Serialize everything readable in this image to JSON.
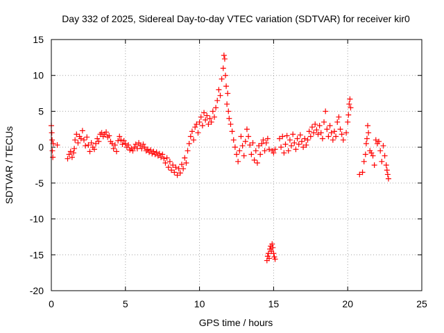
{
  "chart_data": {
    "type": "scatter",
    "title": "Day 332 of 2025, Sidereal Day-to-day VTEC variation (SDTVAR) for receiver kir0",
    "xlabel": "GPS time / hours",
    "ylabel": "SDTVAR / TECUs",
    "xlim": [
      0,
      25
    ],
    "ylim": [
      -20,
      15
    ],
    "xticks": [
      0,
      5,
      10,
      15,
      20,
      25
    ],
    "yticks": [
      15,
      10,
      5,
      0,
      -5,
      -10,
      -15,
      -20
    ],
    "grid": true,
    "marker": "+",
    "color": "#ff0000",
    "series": [
      {
        "name": "SDTVAR",
        "points": [
          [
            0.0,
            3.0
          ],
          [
            0.03,
            2.0
          ],
          [
            0.05,
            1.0
          ],
          [
            0.07,
            -0.5
          ],
          [
            0.1,
            -1.4
          ],
          [
            0.13,
            0.5
          ],
          [
            0.4,
            0.3
          ],
          [
            1.1,
            -1.6
          ],
          [
            1.2,
            -1.0
          ],
          [
            1.3,
            -0.6
          ],
          [
            1.4,
            -1.4
          ],
          [
            1.5,
            -0.8
          ],
          [
            1.55,
            -0.2
          ],
          [
            1.6,
            1.0
          ],
          [
            1.7,
            1.8
          ],
          [
            1.8,
            0.6
          ],
          [
            1.9,
            1.5
          ],
          [
            2.0,
            1.2
          ],
          [
            2.1,
            2.3
          ],
          [
            2.2,
            1.0
          ],
          [
            2.3,
            0.2
          ],
          [
            2.4,
            1.4
          ],
          [
            2.5,
            0.3
          ],
          [
            2.6,
            -0.6
          ],
          [
            2.7,
            0.6
          ],
          [
            2.8,
            0.0
          ],
          [
            2.9,
            -0.3
          ],
          [
            3.0,
            0.5
          ],
          [
            3.1,
            1.2
          ],
          [
            3.2,
            0.8
          ],
          [
            3.3,
            1.8
          ],
          [
            3.4,
            2.0
          ],
          [
            3.5,
            1.5
          ],
          [
            3.6,
            1.8
          ],
          [
            3.7,
            2.1
          ],
          [
            3.8,
            1.4
          ],
          [
            3.9,
            1.6
          ],
          [
            4.0,
            0.8
          ],
          [
            4.1,
            0.5
          ],
          [
            4.2,
            -0.2
          ],
          [
            4.3,
            0.3
          ],
          [
            4.4,
            -0.6
          ],
          [
            4.5,
            0.9
          ],
          [
            4.6,
            1.5
          ],
          [
            4.7,
            1.0
          ],
          [
            4.8,
            0.4
          ],
          [
            4.9,
            0.9
          ],
          [
            5.0,
            0.5
          ],
          [
            5.1,
            0.0
          ],
          [
            5.2,
            0.3
          ],
          [
            5.3,
            -0.4
          ],
          [
            5.4,
            -0.2
          ],
          [
            5.5,
            -0.5
          ],
          [
            5.6,
            0.0
          ],
          [
            5.7,
            0.4
          ],
          [
            5.8,
            -0.2
          ],
          [
            5.9,
            0.6
          ],
          [
            6.0,
            0.2
          ],
          [
            6.1,
            -0.2
          ],
          [
            6.2,
            0.4
          ],
          [
            6.3,
            0.0
          ],
          [
            6.4,
            -0.5
          ],
          [
            6.5,
            -0.3
          ],
          [
            6.6,
            -0.7
          ],
          [
            6.7,
            -0.4
          ],
          [
            6.8,
            -0.9
          ],
          [
            6.9,
            -0.6
          ],
          [
            7.0,
            -1.0
          ],
          [
            7.1,
            -0.7
          ],
          [
            7.2,
            -1.2
          ],
          [
            7.3,
            -0.9
          ],
          [
            7.4,
            -1.4
          ],
          [
            7.5,
            -1.0
          ],
          [
            7.6,
            -1.6
          ],
          [
            7.7,
            -2.2
          ],
          [
            7.8,
            -1.5
          ],
          [
            7.9,
            -2.8
          ],
          [
            8.0,
            -2.0
          ],
          [
            8.1,
            -3.2
          ],
          [
            8.2,
            -2.5
          ],
          [
            8.3,
            -3.5
          ],
          [
            8.4,
            -2.8
          ],
          [
            8.5,
            -3.9
          ],
          [
            8.6,
            -3.0
          ],
          [
            8.7,
            -3.6
          ],
          [
            8.8,
            -2.4
          ],
          [
            8.9,
            -3.0
          ],
          [
            9.0,
            -1.5
          ],
          [
            9.1,
            -2.2
          ],
          [
            9.2,
            -0.5
          ],
          [
            9.3,
            0.5
          ],
          [
            9.4,
            1.5
          ],
          [
            9.5,
            2.2
          ],
          [
            9.6,
            1.0
          ],
          [
            9.7,
            2.8
          ],
          [
            9.8,
            3.2
          ],
          [
            9.9,
            2.0
          ],
          [
            10.0,
            3.5
          ],
          [
            10.1,
            4.2
          ],
          [
            10.2,
            3.0
          ],
          [
            10.3,
            4.8
          ],
          [
            10.4,
            3.8
          ],
          [
            10.5,
            4.4
          ],
          [
            10.6,
            3.2
          ],
          [
            10.7,
            4.0
          ],
          [
            10.8,
            3.5
          ],
          [
            10.9,
            5.0
          ],
          [
            11.0,
            4.2
          ],
          [
            11.1,
            5.5
          ],
          [
            11.2,
            6.5
          ],
          [
            11.3,
            8.0
          ],
          [
            11.4,
            7.2
          ],
          [
            11.5,
            9.5
          ],
          [
            11.6,
            11.0
          ],
          [
            11.65,
            12.8
          ],
          [
            11.7,
            12.3
          ],
          [
            11.75,
            10.0
          ],
          [
            11.8,
            8.5
          ],
          [
            11.85,
            6.0
          ],
          [
            11.9,
            7.5
          ],
          [
            11.95,
            5.0
          ],
          [
            12.0,
            4.0
          ],
          [
            12.1,
            3.2
          ],
          [
            12.2,
            2.2
          ],
          [
            12.3,
            1.0
          ],
          [
            12.4,
            0.0
          ],
          [
            12.5,
            -1.0
          ],
          [
            12.6,
            -2.0
          ],
          [
            12.7,
            -0.5
          ],
          [
            12.8,
            1.5
          ],
          [
            12.9,
            0.2
          ],
          [
            13.0,
            -1.2
          ],
          [
            13.1,
            0.8
          ],
          [
            13.2,
            2.5
          ],
          [
            13.3,
            1.5
          ],
          [
            13.4,
            0.3
          ],
          [
            13.5,
            -1.0
          ],
          [
            13.6,
            0.6
          ],
          [
            13.7,
            -1.8
          ],
          [
            13.8,
            -0.5
          ],
          [
            13.9,
            -2.2
          ],
          [
            14.0,
            0.2
          ],
          [
            14.1,
            -1.0
          ],
          [
            14.2,
            0.5
          ],
          [
            14.3,
            1.0
          ],
          [
            14.4,
            -0.5
          ],
          [
            14.5,
            0.6
          ],
          [
            14.6,
            1.2
          ],
          [
            14.7,
            -0.3
          ],
          [
            14.55,
            -15.8
          ],
          [
            14.6,
            -15.2
          ],
          [
            14.65,
            -14.8
          ],
          [
            14.7,
            -15.5
          ],
          [
            14.75,
            -14.2
          ],
          [
            14.8,
            -13.8
          ],
          [
            14.85,
            -14.5
          ],
          [
            14.9,
            -13.5
          ],
          [
            14.95,
            -14.0
          ],
          [
            15.0,
            -14.8
          ],
          [
            15.05,
            -15.3
          ],
          [
            15.1,
            -15.6
          ],
          [
            14.9,
            -0.5
          ],
          [
            15.0,
            -0.8
          ],
          [
            15.1,
            -0.3
          ],
          [
            15.4,
            1.2
          ],
          [
            15.5,
            0.0
          ],
          [
            15.6,
            1.5
          ],
          [
            15.7,
            -0.8
          ],
          [
            15.8,
            0.4
          ],
          [
            15.9,
            1.6
          ],
          [
            16.0,
            -0.5
          ],
          [
            16.1,
            1.0
          ],
          [
            16.2,
            0.2
          ],
          [
            16.3,
            1.8
          ],
          [
            16.4,
            0.6
          ],
          [
            16.5,
            -0.3
          ],
          [
            16.6,
            1.2
          ],
          [
            16.7,
            0.4
          ],
          [
            16.8,
            1.7
          ],
          [
            16.9,
            0.8
          ],
          [
            17.0,
            0.0
          ],
          [
            17.1,
            1.2
          ],
          [
            17.2,
            0.3
          ],
          [
            17.3,
            1.0
          ],
          [
            17.4,
            2.2
          ],
          [
            17.5,
            1.5
          ],
          [
            17.6,
            2.8
          ],
          [
            17.7,
            2.0
          ],
          [
            17.8,
            3.2
          ],
          [
            17.9,
            2.4
          ],
          [
            18.0,
            1.8
          ],
          [
            18.1,
            3.0
          ],
          [
            18.2,
            2.0
          ],
          [
            18.3,
            1.2
          ],
          [
            18.4,
            3.5
          ],
          [
            18.5,
            5.0
          ],
          [
            18.6,
            2.5
          ],
          [
            18.7,
            1.5
          ],
          [
            18.8,
            3.0
          ],
          [
            18.9,
            2.0
          ],
          [
            19.0,
            1.0
          ],
          [
            19.1,
            2.2
          ],
          [
            19.2,
            1.5
          ],
          [
            19.3,
            3.5
          ],
          [
            19.4,
            4.2
          ],
          [
            19.5,
            2.5
          ],
          [
            19.6,
            1.8
          ],
          [
            19.7,
            1.0
          ],
          [
            19.9,
            2.0
          ],
          [
            20.0,
            3.5
          ],
          [
            20.05,
            4.5
          ],
          [
            20.1,
            6.0
          ],
          [
            20.15,
            6.7
          ],
          [
            20.2,
            5.5
          ],
          [
            20.8,
            -3.8
          ],
          [
            21.0,
            -3.5
          ],
          [
            21.1,
            -2.0
          ],
          [
            21.2,
            -1.0
          ],
          [
            21.25,
            0.5
          ],
          [
            21.3,
            1.2
          ],
          [
            21.35,
            3.0
          ],
          [
            21.4,
            2.0
          ],
          [
            21.5,
            -0.5
          ],
          [
            21.6,
            -0.8
          ],
          [
            21.7,
            -1.2
          ],
          [
            21.8,
            -2.5
          ],
          [
            21.9,
            1.0
          ],
          [
            22.0,
            0.5
          ],
          [
            22.1,
            0.8
          ],
          [
            22.2,
            -0.5
          ],
          [
            22.3,
            -2.0
          ],
          [
            22.4,
            0.2
          ],
          [
            22.5,
            -1.2
          ],
          [
            22.6,
            -2.5
          ],
          [
            22.65,
            -3.2
          ],
          [
            22.7,
            -3.8
          ],
          [
            22.75,
            -4.4
          ]
        ]
      }
    ]
  }
}
